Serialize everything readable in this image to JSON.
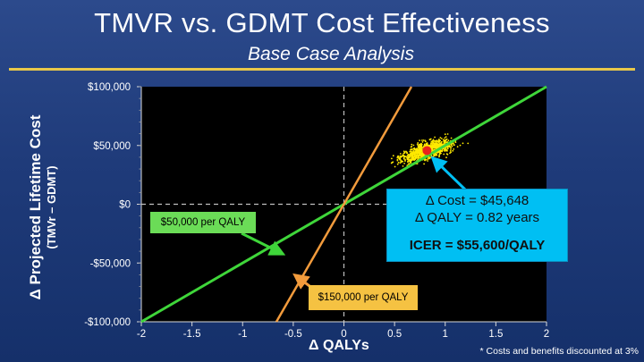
{
  "header": {
    "title": "TMVR vs. GDMT Cost Effectiveness",
    "subtitle": "Base Case Analysis"
  },
  "chart_data": {
    "type": "scatter",
    "ylabel_line1": "Δ Projected Lifetime Cost",
    "ylabel_line2": "(TMVr – GDMT)",
    "xlabel": "Δ QALYs",
    "xlim": [
      -2,
      2
    ],
    "ylim": [
      -100000,
      100000
    ],
    "x_ticks": [
      "-2",
      "-1.5",
      "-1",
      "-0.5",
      "0",
      "0.5",
      "1",
      "1.5",
      "2"
    ],
    "x_tick_values": [
      -2,
      -1.5,
      -1,
      -0.5,
      0,
      0.5,
      1,
      1.5,
      2
    ],
    "y_ticks": [
      "$100,000",
      "$50,000",
      "$0",
      "-$50,000",
      "-$100,000"
    ],
    "y_tick_values": [
      100000,
      50000,
      0,
      -50000,
      -100000
    ],
    "point_cloud": {
      "color": "#ffea00",
      "center": [
        0.82,
        45648
      ],
      "x_spread": 0.33,
      "y_spread": 9000,
      "count": 1000
    },
    "base_case_point": {
      "x": 0.82,
      "y": 45648,
      "color": "#e8231b"
    },
    "wtp_lines": [
      {
        "name": "$50,000 per QALY",
        "slope_per_qaly": 50000,
        "color": "#3fd63a"
      },
      {
        "name": "$150,000 per QALY",
        "slope_per_qaly": 150000,
        "color": "#f29b3c"
      }
    ],
    "annotation": {
      "line1": "Δ Cost = $45,648",
      "line2": "Δ QALY = 0.82 years",
      "line3": "ICER = $55,600/QALY"
    }
  },
  "labels": {
    "green": "$50,000 per QALY",
    "orange": "$150,000 per QALY"
  },
  "footnote": "* Costs and benefits discounted at 3%",
  "colors": {
    "background": "#1f3b7a",
    "plot_area": "#000000",
    "accent_rule": "#e9c84a",
    "callout": "#00bff3"
  }
}
